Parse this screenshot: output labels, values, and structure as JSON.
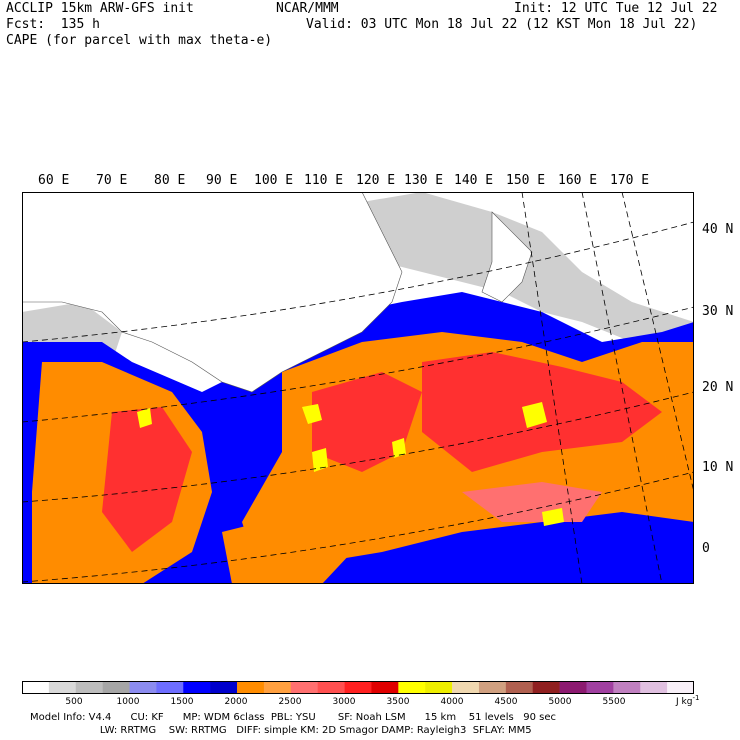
{
  "header": {
    "model": "ACCLIP 15km ARW-GFS init",
    "center": "NCAR/MMM",
    "init": "Init: 12 UTC Tue 12 Jul 22",
    "fcst": "Fcst:  135 h",
    "valid": "Valid: 03 UTC Mon 18 Jul 22 (12 KST Mon 18 Jul 22)",
    "field": "CAPE (for parcel with max theta-e)"
  },
  "longitudes": [
    "60 E",
    "70 E",
    "80 E",
    "90 E",
    "100 E",
    "110 E",
    "120 E",
    "130 E",
    "140 E",
    "150 E",
    "160 E",
    "170 E"
  ],
  "latitudes": [
    "40 N",
    "30 N",
    "20 N",
    "10 N",
    "0"
  ],
  "colorbar": {
    "colors": [
      "#ffffff",
      "#d9d9d9",
      "#bdbdbd",
      "#a6a6a6",
      "#8c8cf0",
      "#6e6eff",
      "#0000ff",
      "#0000cc",
      "#ff8c00",
      "#ffa040",
      "#ff7070",
      "#ff5050",
      "#ff2020",
      "#e00000",
      "#ffff00",
      "#eeee00",
      "#f0d8b0",
      "#d0a080",
      "#b06050",
      "#902020",
      "#8c1a70",
      "#a040a0",
      "#c080c0",
      "#e0c0e0",
      "#f8f0f8"
    ],
    "labels": [
      "500",
      "1000",
      "1500",
      "2000",
      "2500",
      "3000",
      "3500",
      "4000",
      "4500",
      "5000",
      "5500"
    ],
    "unit": "J kg"
  },
  "footer": {
    "line1": "Model Info: V4.4      CU: KF      MP: WDM 6class  PBL: YSU       SF: Noah LSM      15 km    51 levels   90 sec",
    "line2": "                      LW: RRTMG    SW: RRTMG   DIFF: simple KM: 2D Smagor DAMP: Rayleigh3  SFLAY: MM5"
  }
}
